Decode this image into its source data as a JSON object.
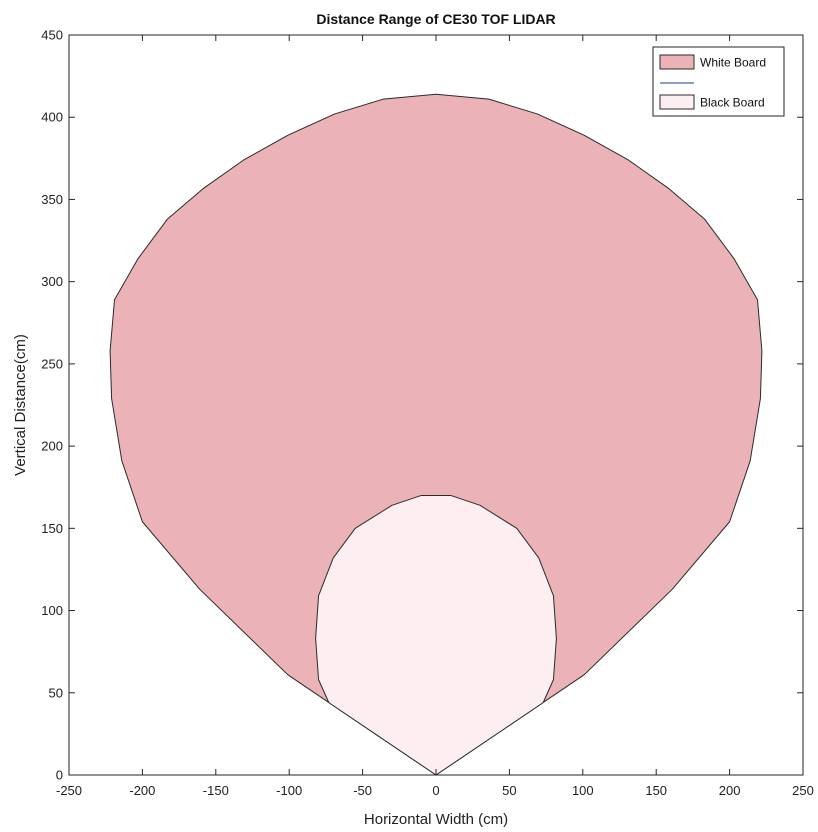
{
  "chart_data": {
    "type": "area",
    "title": "Distance Range of CE30 TOF LIDAR",
    "xlabel": "Horizontal Width (cm)",
    "ylabel": "Vertical Distance(cm)",
    "xlim": [
      -250,
      250
    ],
    "ylim": [
      0,
      450
    ],
    "xticks": [
      -250,
      -200,
      -150,
      -100,
      -50,
      0,
      50,
      100,
      150,
      200,
      250
    ],
    "yticks": [
      0,
      50,
      100,
      150,
      200,
      250,
      300,
      350,
      400,
      450
    ],
    "grid": false,
    "legend_position": "top-right",
    "series": [
      {
        "name": "White Board",
        "fill": "#EBB2B7",
        "stroke": "#2b2b2b",
        "x": [
          0,
          -101,
          -161,
          -200,
          -214,
          -221,
          -222,
          -219,
          -203,
          -183,
          -158,
          -131,
          -101,
          -69,
          -36,
          0,
          36,
          69,
          101,
          131,
          158,
          183,
          203,
          219,
          222,
          221,
          214,
          200,
          161,
          101,
          0
        ],
        "y": [
          0,
          61,
          113,
          154,
          191,
          229,
          258,
          289,
          314,
          338,
          357,
          374,
          389,
          402,
          411,
          414,
          411,
          402,
          389,
          374,
          357,
          338,
          314,
          289,
          258,
          229,
          191,
          154,
          113,
          61,
          0
        ]
      },
      {
        "name": "",
        "stroke": "#1F3C88",
        "x": [],
        "y": []
      },
      {
        "name": "Black Board",
        "fill": "#FDEEF2",
        "stroke": "#2b2b2b",
        "x": [
          0,
          -73,
          -80,
          -82,
          -80,
          -70,
          -55,
          -30,
          -10,
          10,
          30,
          55,
          70,
          80,
          82,
          80,
          73,
          0
        ],
        "y": [
          0,
          44,
          58,
          83,
          109,
          132,
          150,
          164,
          170,
          170,
          164,
          150,
          132,
          109,
          83,
          58,
          44,
          0
        ]
      }
    ]
  }
}
